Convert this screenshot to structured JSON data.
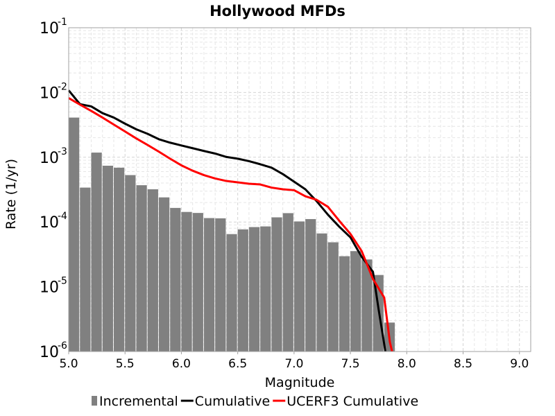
{
  "chart_data": {
    "type": "bar",
    "title": "Hollywood MFDs",
    "xlabel": "Magnitude",
    "ylabel": "Rate (1/yr)",
    "xlim": [
      5.0,
      9.1
    ],
    "ylim": [
      1e-06,
      0.1
    ],
    "yscale": "log",
    "grid": true,
    "legend_position": "bottom",
    "x_ticks": [
      "5.0",
      "5.5",
      "6.0",
      "6.5",
      "7.0",
      "7.5",
      "8.0",
      "8.5",
      "9.0"
    ],
    "y_ticks": [
      {
        "base": "10",
        "exp": "-6"
      },
      {
        "base": "10",
        "exp": "-5"
      },
      {
        "base": "10",
        "exp": "-4"
      },
      {
        "base": "10",
        "exp": "-3"
      },
      {
        "base": "10",
        "exp": "-2"
      },
      {
        "base": "10",
        "exp": "-1"
      }
    ],
    "series": [
      {
        "name": "Incremental",
        "kind": "bar",
        "color": "#808080",
        "x": [
          5.05,
          5.15,
          5.25,
          5.35,
          5.45,
          5.55,
          5.65,
          5.75,
          5.85,
          5.95,
          6.05,
          6.15,
          6.25,
          6.35,
          6.45,
          6.55,
          6.65,
          6.75,
          6.85,
          6.95,
          7.05,
          7.15,
          7.25,
          7.35,
          7.45,
          7.55,
          7.65,
          7.75,
          7.85
        ],
        "values": [
          0.0041,
          0.00034,
          0.00118,
          0.00074,
          0.00069,
          0.00053,
          0.00037,
          0.00032,
          0.00024,
          0.000165,
          0.000143,
          0.000138,
          0.000115,
          0.000114,
          6.51e-05,
          7.7e-05,
          8.35e-05,
          8.55e-05,
          0.000118,
          0.000137,
          0.000102,
          0.000111,
          6.66e-05,
          4.86e-05,
          2.96e-05,
          3.55e-05,
          2.64e-05,
          1.52e-05,
          2.8e-06
        ]
      },
      {
        "name": "Cumulative",
        "kind": "line",
        "color": "#000000",
        "x": [
          5.0,
          5.1,
          5.2,
          5.3,
          5.4,
          5.5,
          5.6,
          5.7,
          5.8,
          5.9,
          6.0,
          6.1,
          6.2,
          6.3,
          6.4,
          6.5,
          6.6,
          6.7,
          6.8,
          6.9,
          7.0,
          7.1,
          7.2,
          7.3,
          7.4,
          7.5,
          7.6,
          7.7,
          7.75,
          7.8,
          7.81
        ],
        "values": [
          0.0108,
          0.0066,
          0.0061,
          0.0048,
          0.0041,
          0.0033,
          0.0027,
          0.0023,
          0.0019,
          0.00168,
          0.00152,
          0.00138,
          0.00125,
          0.00114,
          0.00101,
          0.00095,
          0.00087,
          0.00078,
          0.00069,
          0.00055,
          0.00042,
          0.00032,
          0.00021,
          0.00013,
          8.5e-05,
          5.8e-05,
          2.9e-05,
          1.7e-05,
          4.5e-06,
          1.3e-06,
          1e-06
        ]
      },
      {
        "name": "UCERF3 Cumulative",
        "kind": "line",
        "color": "#ff0000",
        "x": [
          5.0,
          5.1,
          5.2,
          5.3,
          5.4,
          5.5,
          5.6,
          5.7,
          5.8,
          5.9,
          6.0,
          6.1,
          6.2,
          6.3,
          6.4,
          6.5,
          6.6,
          6.7,
          6.8,
          6.9,
          7.0,
          7.1,
          7.2,
          7.3,
          7.4,
          7.5,
          7.6,
          7.7,
          7.8,
          7.85,
          7.87
        ],
        "values": [
          0.0082,
          0.0065,
          0.0052,
          0.0041,
          0.0032,
          0.0025,
          0.00195,
          0.00155,
          0.00122,
          0.00095,
          0.00075,
          0.00062,
          0.00053,
          0.00047,
          0.00043,
          0.00041,
          0.00039,
          0.00038,
          0.00034,
          0.00032,
          0.00031,
          0.00025,
          0.00022,
          0.000172,
          0.000105,
          6.56e-05,
          3.55e-05,
          1.32e-05,
          6.8e-06,
          1.4e-06,
          1e-06
        ]
      }
    ]
  }
}
